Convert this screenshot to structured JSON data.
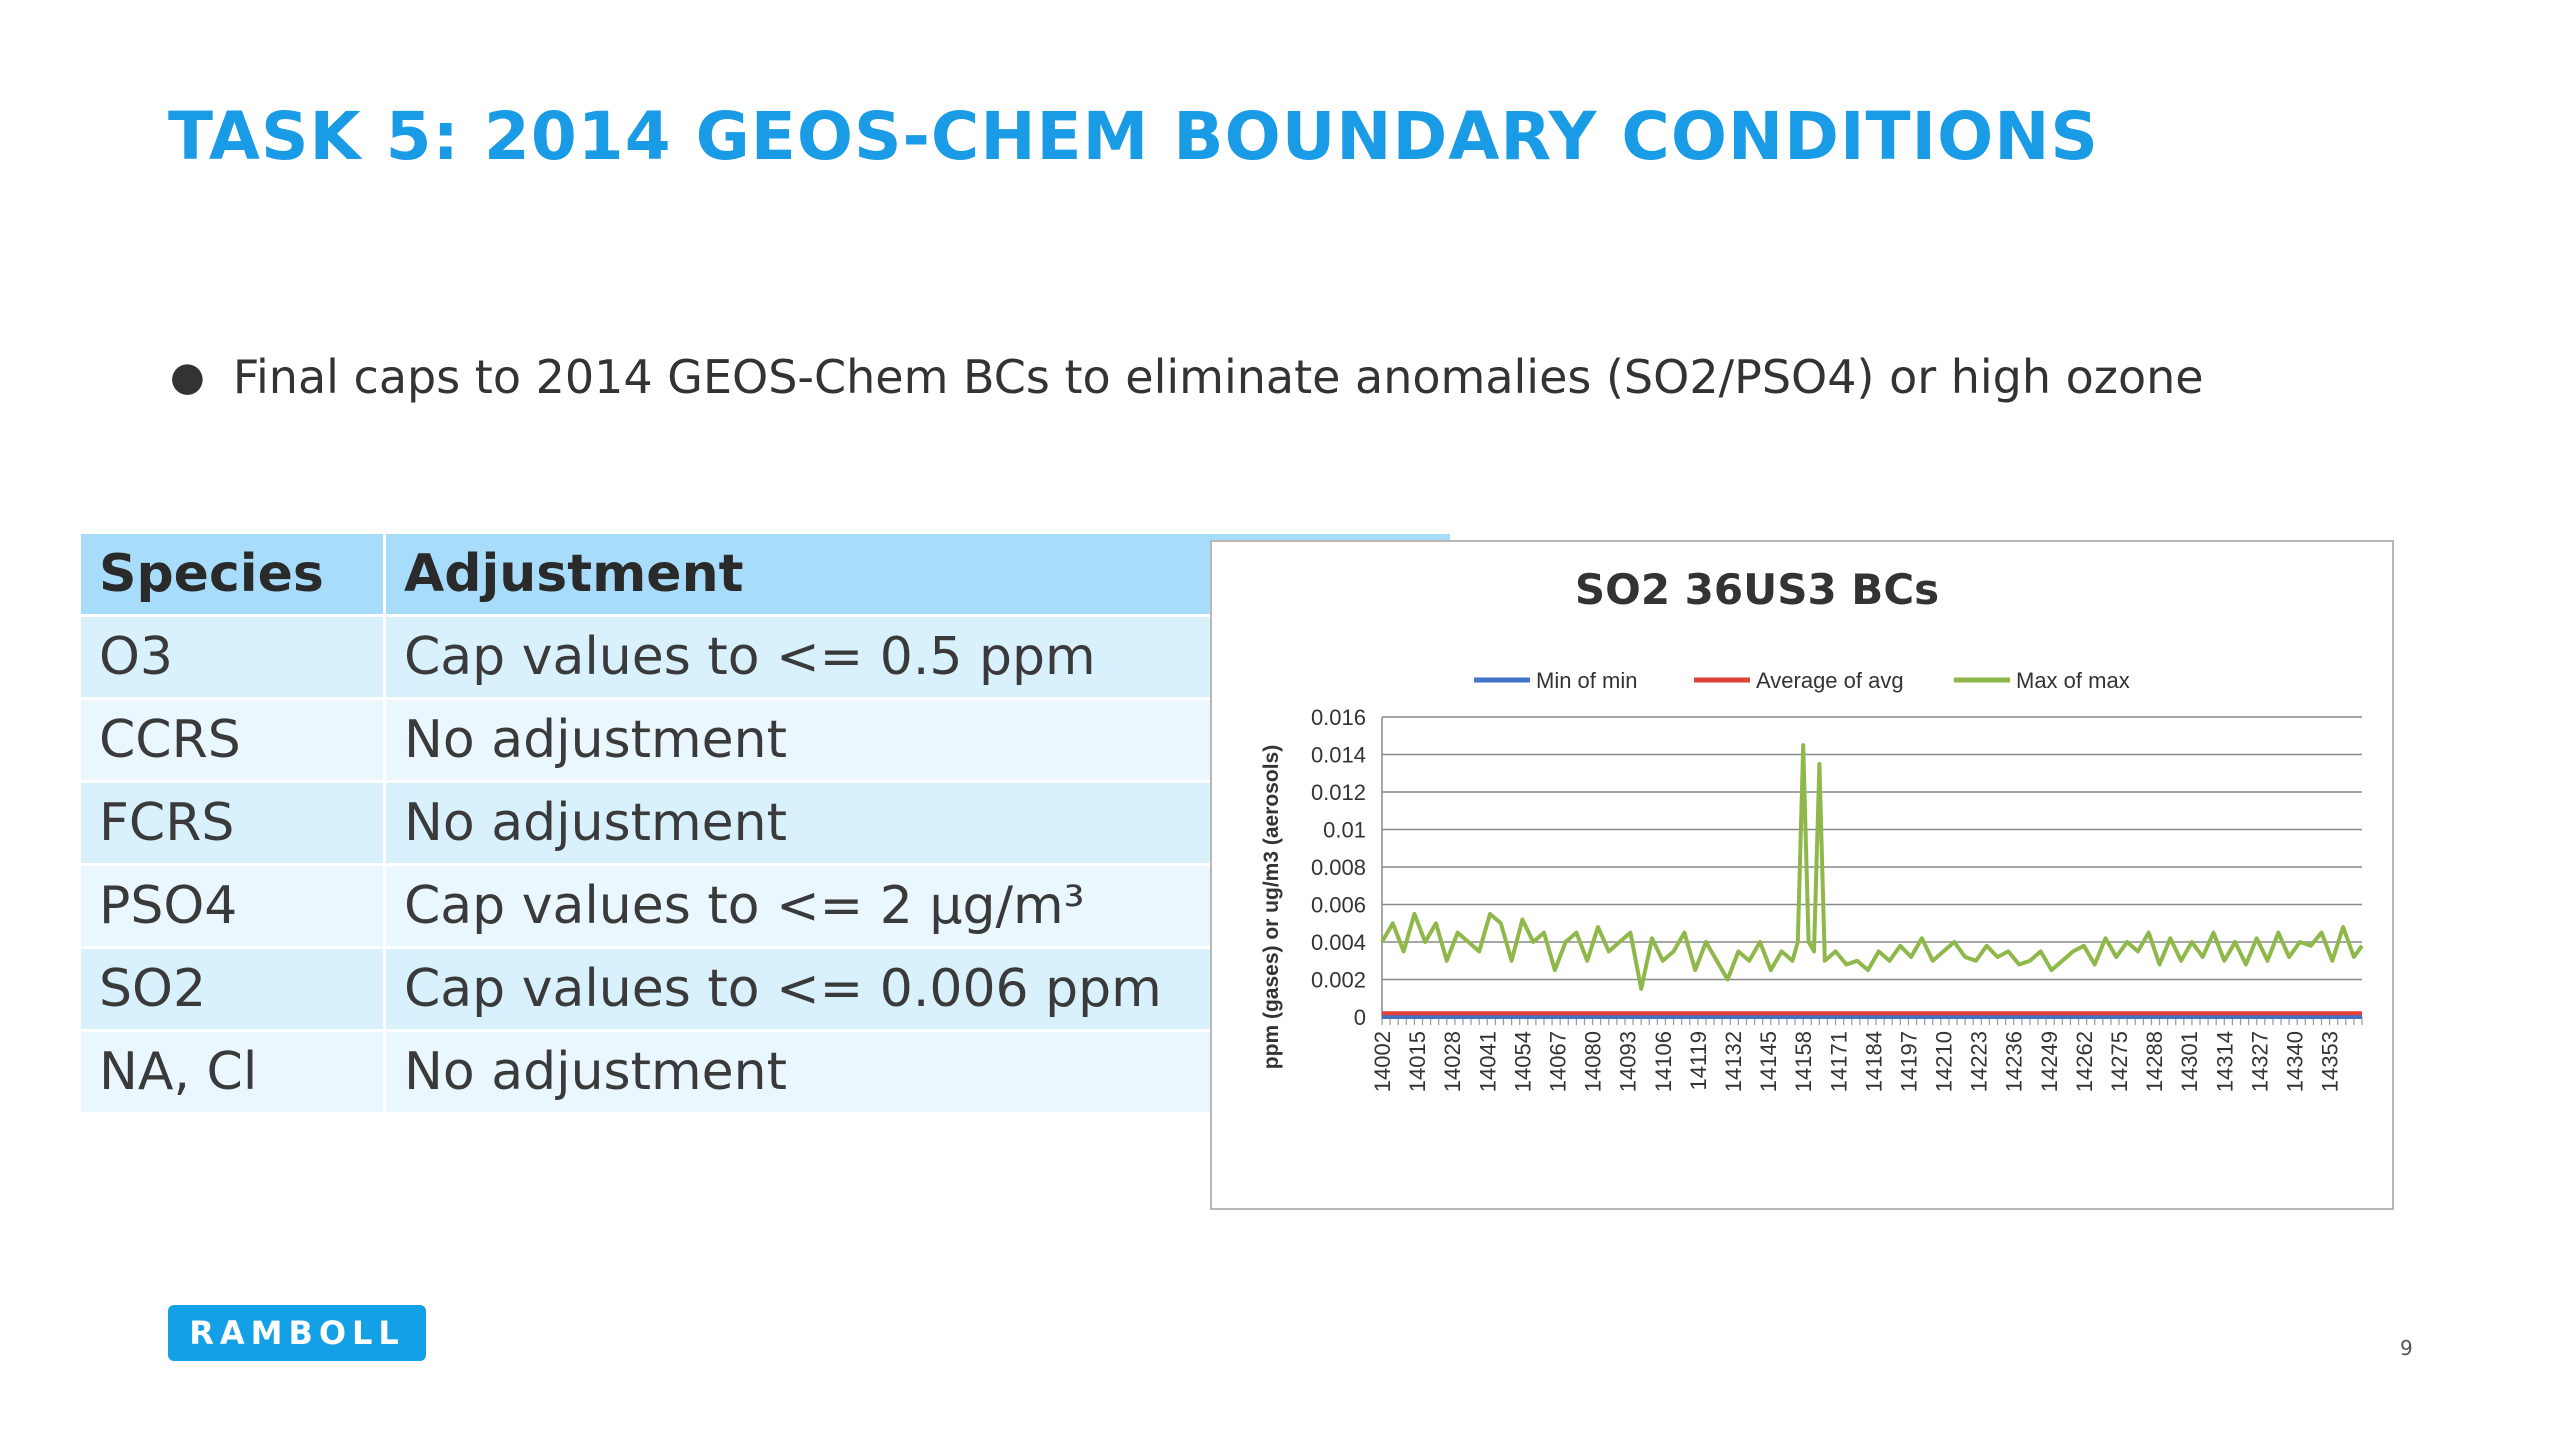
{
  "slide": {
    "title": "TASK 5:  2014 GEOS-CHEM BOUNDARY CONDITIONS",
    "bullet": "Final caps to 2014 GEOS-Chem BCs to eliminate anomalies (SO2/PSO4) or high ozone",
    "logo_text": "RAMBOLL",
    "page_number": "9"
  },
  "table": {
    "headers": [
      "Species",
      "Adjustment"
    ],
    "rows": [
      {
        "species": "O3",
        "adjustment": "Cap values to <= 0.5 ppm"
      },
      {
        "species": "CCRS",
        "adjustment": "No adjustment"
      },
      {
        "species": "FCRS",
        "adjustment": "No adjustment"
      },
      {
        "species": "PSO4",
        "adjustment": "Cap values to <= 2  µg/m³"
      },
      {
        "species": "SO2",
        "adjustment": "Cap values to <= 0.006 ppm"
      },
      {
        "species": "NA, Cl",
        "adjustment": "No adjustment"
      }
    ]
  },
  "chart_data": {
    "type": "line",
    "title": "SO2 36US3 BCs",
    "ylabel": "ppm (gases) or ug/m3 (aerosols)",
    "xlabel": "",
    "ylim": [
      0,
      0.016
    ],
    "yticks": [
      0,
      0.002,
      0.004,
      0.006,
      0.008,
      0.01,
      0.012,
      0.014,
      0.016
    ],
    "ytick_labels": [
      "0",
      "0.002",
      "0.004",
      "0.006",
      "0.008",
      "0.01",
      "0.012",
      "0.014",
      "0.016"
    ],
    "xlim": [
      14002,
      14365
    ],
    "xtick_labels": [
      "14002",
      "14015",
      "14028",
      "14041",
      "14054",
      "14067",
      "14080",
      "14093",
      "14106",
      "14119",
      "14132",
      "14145",
      "14158",
      "14171",
      "14184",
      "14197",
      "14210",
      "14223",
      "14236",
      "14249",
      "14262",
      "14275",
      "14288",
      "14301",
      "14314",
      "14327",
      "14340",
      "14353"
    ],
    "grid": true,
    "legend_position": "top",
    "series": [
      {
        "name": "Min of min",
        "color": "#4472c4",
        "x": [
          14002,
          14365
        ],
        "values": [
          0.0,
          0.0
        ]
      },
      {
        "name": "Average of avg",
        "color": "#e0403a",
        "x": [
          14002,
          14100,
          14200,
          14300,
          14365
        ],
        "values": [
          0.0002,
          0.0002,
          0.0002,
          0.0002,
          0.0002
        ]
      },
      {
        "name": "Max of max",
        "color": "#8fb84a",
        "x": [
          14002,
          14006,
          14010,
          14014,
          14018,
          14022,
          14026,
          14030,
          14034,
          14038,
          14042,
          14046,
          14050,
          14054,
          14058,
          14062,
          14066,
          14070,
          14074,
          14078,
          14082,
          14086,
          14090,
          14094,
          14098,
          14102,
          14106,
          14110,
          14114,
          14118,
          14122,
          14126,
          14130,
          14134,
          14138,
          14142,
          14146,
          14150,
          14154,
          14156,
          14158,
          14160,
          14162,
          14164,
          14166,
          14170,
          14174,
          14178,
          14182,
          14186,
          14190,
          14194,
          14198,
          14202,
          14206,
          14210,
          14214,
          14218,
          14222,
          14226,
          14230,
          14234,
          14238,
          14242,
          14246,
          14250,
          14254,
          14258,
          14262,
          14266,
          14270,
          14274,
          14278,
          14282,
          14286,
          14290,
          14294,
          14298,
          14302,
          14306,
          14310,
          14314,
          14318,
          14322,
          14326,
          14330,
          14334,
          14338,
          14342,
          14346,
          14350,
          14354,
          14358,
          14362,
          14365
        ],
        "values": [
          0.004,
          0.005,
          0.0035,
          0.0055,
          0.004,
          0.005,
          0.003,
          0.0045,
          0.004,
          0.0035,
          0.0055,
          0.005,
          0.003,
          0.0052,
          0.004,
          0.0045,
          0.0025,
          0.004,
          0.0045,
          0.003,
          0.0048,
          0.0035,
          0.004,
          0.0045,
          0.0015,
          0.0042,
          0.003,
          0.0035,
          0.0045,
          0.0025,
          0.004,
          0.003,
          0.002,
          0.0035,
          0.003,
          0.004,
          0.0025,
          0.0035,
          0.003,
          0.004,
          0.0145,
          0.004,
          0.0035,
          0.0135,
          0.003,
          0.0035,
          0.0028,
          0.003,
          0.0025,
          0.0035,
          0.003,
          0.0038,
          0.0032,
          0.0042,
          0.003,
          0.0035,
          0.004,
          0.0032,
          0.003,
          0.0038,
          0.0032,
          0.0035,
          0.0028,
          0.003,
          0.0035,
          0.0025,
          0.003,
          0.0035,
          0.0038,
          0.0028,
          0.0042,
          0.0032,
          0.004,
          0.0035,
          0.0045,
          0.0028,
          0.0042,
          0.003,
          0.004,
          0.0032,
          0.0045,
          0.003,
          0.004,
          0.0028,
          0.0042,
          0.003,
          0.0045,
          0.0032,
          0.004,
          0.0038,
          0.0045,
          0.003,
          0.0048,
          0.0032,
          0.0038
        ]
      }
    ]
  }
}
